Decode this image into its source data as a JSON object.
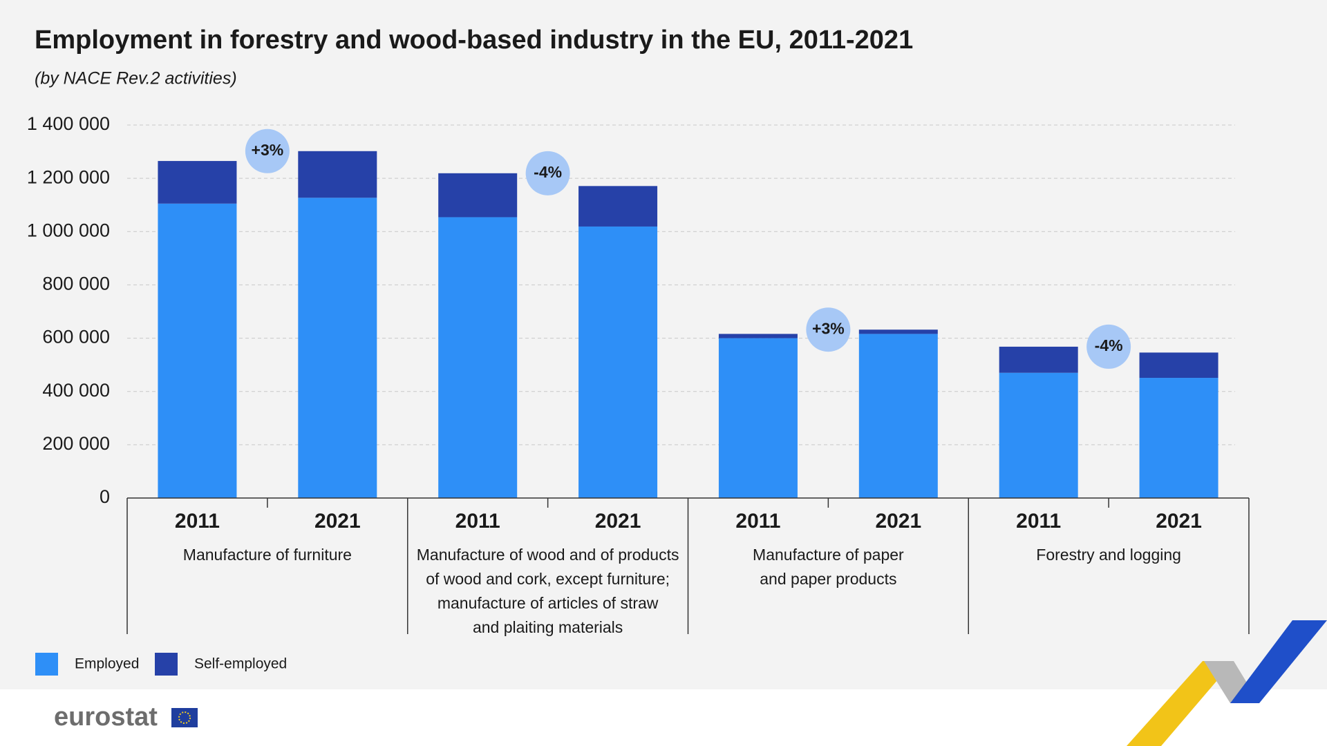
{
  "chart_data": {
    "type": "stacked_bar",
    "title": "Employment in forestry and wood-based industry in the EU, 2011-2021",
    "subtitle": "(by NACE Rev.2 activities)",
    "categories": [
      "2011",
      "2021",
      "2011",
      "2021",
      "2011",
      "2021",
      "2011",
      "2021"
    ],
    "groups": [
      {
        "lines": [
          "Manufacture of furniture"
        ]
      },
      {
        "lines": [
          "Manufacture of wood and of products",
          "of wood and cork, except furniture;",
          "manufacture of articles of straw",
          "and plaiting materials"
        ]
      },
      {
        "lines": [
          "Manufacture of paper",
          "and paper products"
        ]
      },
      {
        "lines": [
          "Forestry and logging"
        ]
      }
    ],
    "series": [
      {
        "name": "Employed",
        "color": "#2e8ff7",
        "values": [
          1105000,
          1127000,
          1054000,
          1019000,
          600000,
          616000,
          470000,
          451000
        ]
      },
      {
        "name": "Self-employed",
        "color": "#2641a8",
        "values": [
          160000,
          175000,
          165000,
          152000,
          16000,
          16000,
          98000,
          95000
        ]
      }
    ],
    "annotations": [
      "+3%",
      "-4%",
      "+3%",
      "-4%"
    ],
    "ylim": [
      0,
      1400000
    ],
    "yticks": [
      0,
      {
        "value": 200000,
        "label": "200 000"
      },
      {
        "value": 400000,
        "label": "400 000"
      },
      {
        "value": 600000,
        "label": "600 000"
      },
      {
        "value": 800000,
        "label": "800 000"
      },
      {
        "value": 1000000,
        "label": "1 000 000"
      },
      {
        "value": 1200000,
        "label": "1 200 000"
      },
      {
        "value": 1400000,
        "label": "1 400 000"
      }
    ],
    "grid": true
  },
  "footer": {
    "brand": "eurostat"
  }
}
